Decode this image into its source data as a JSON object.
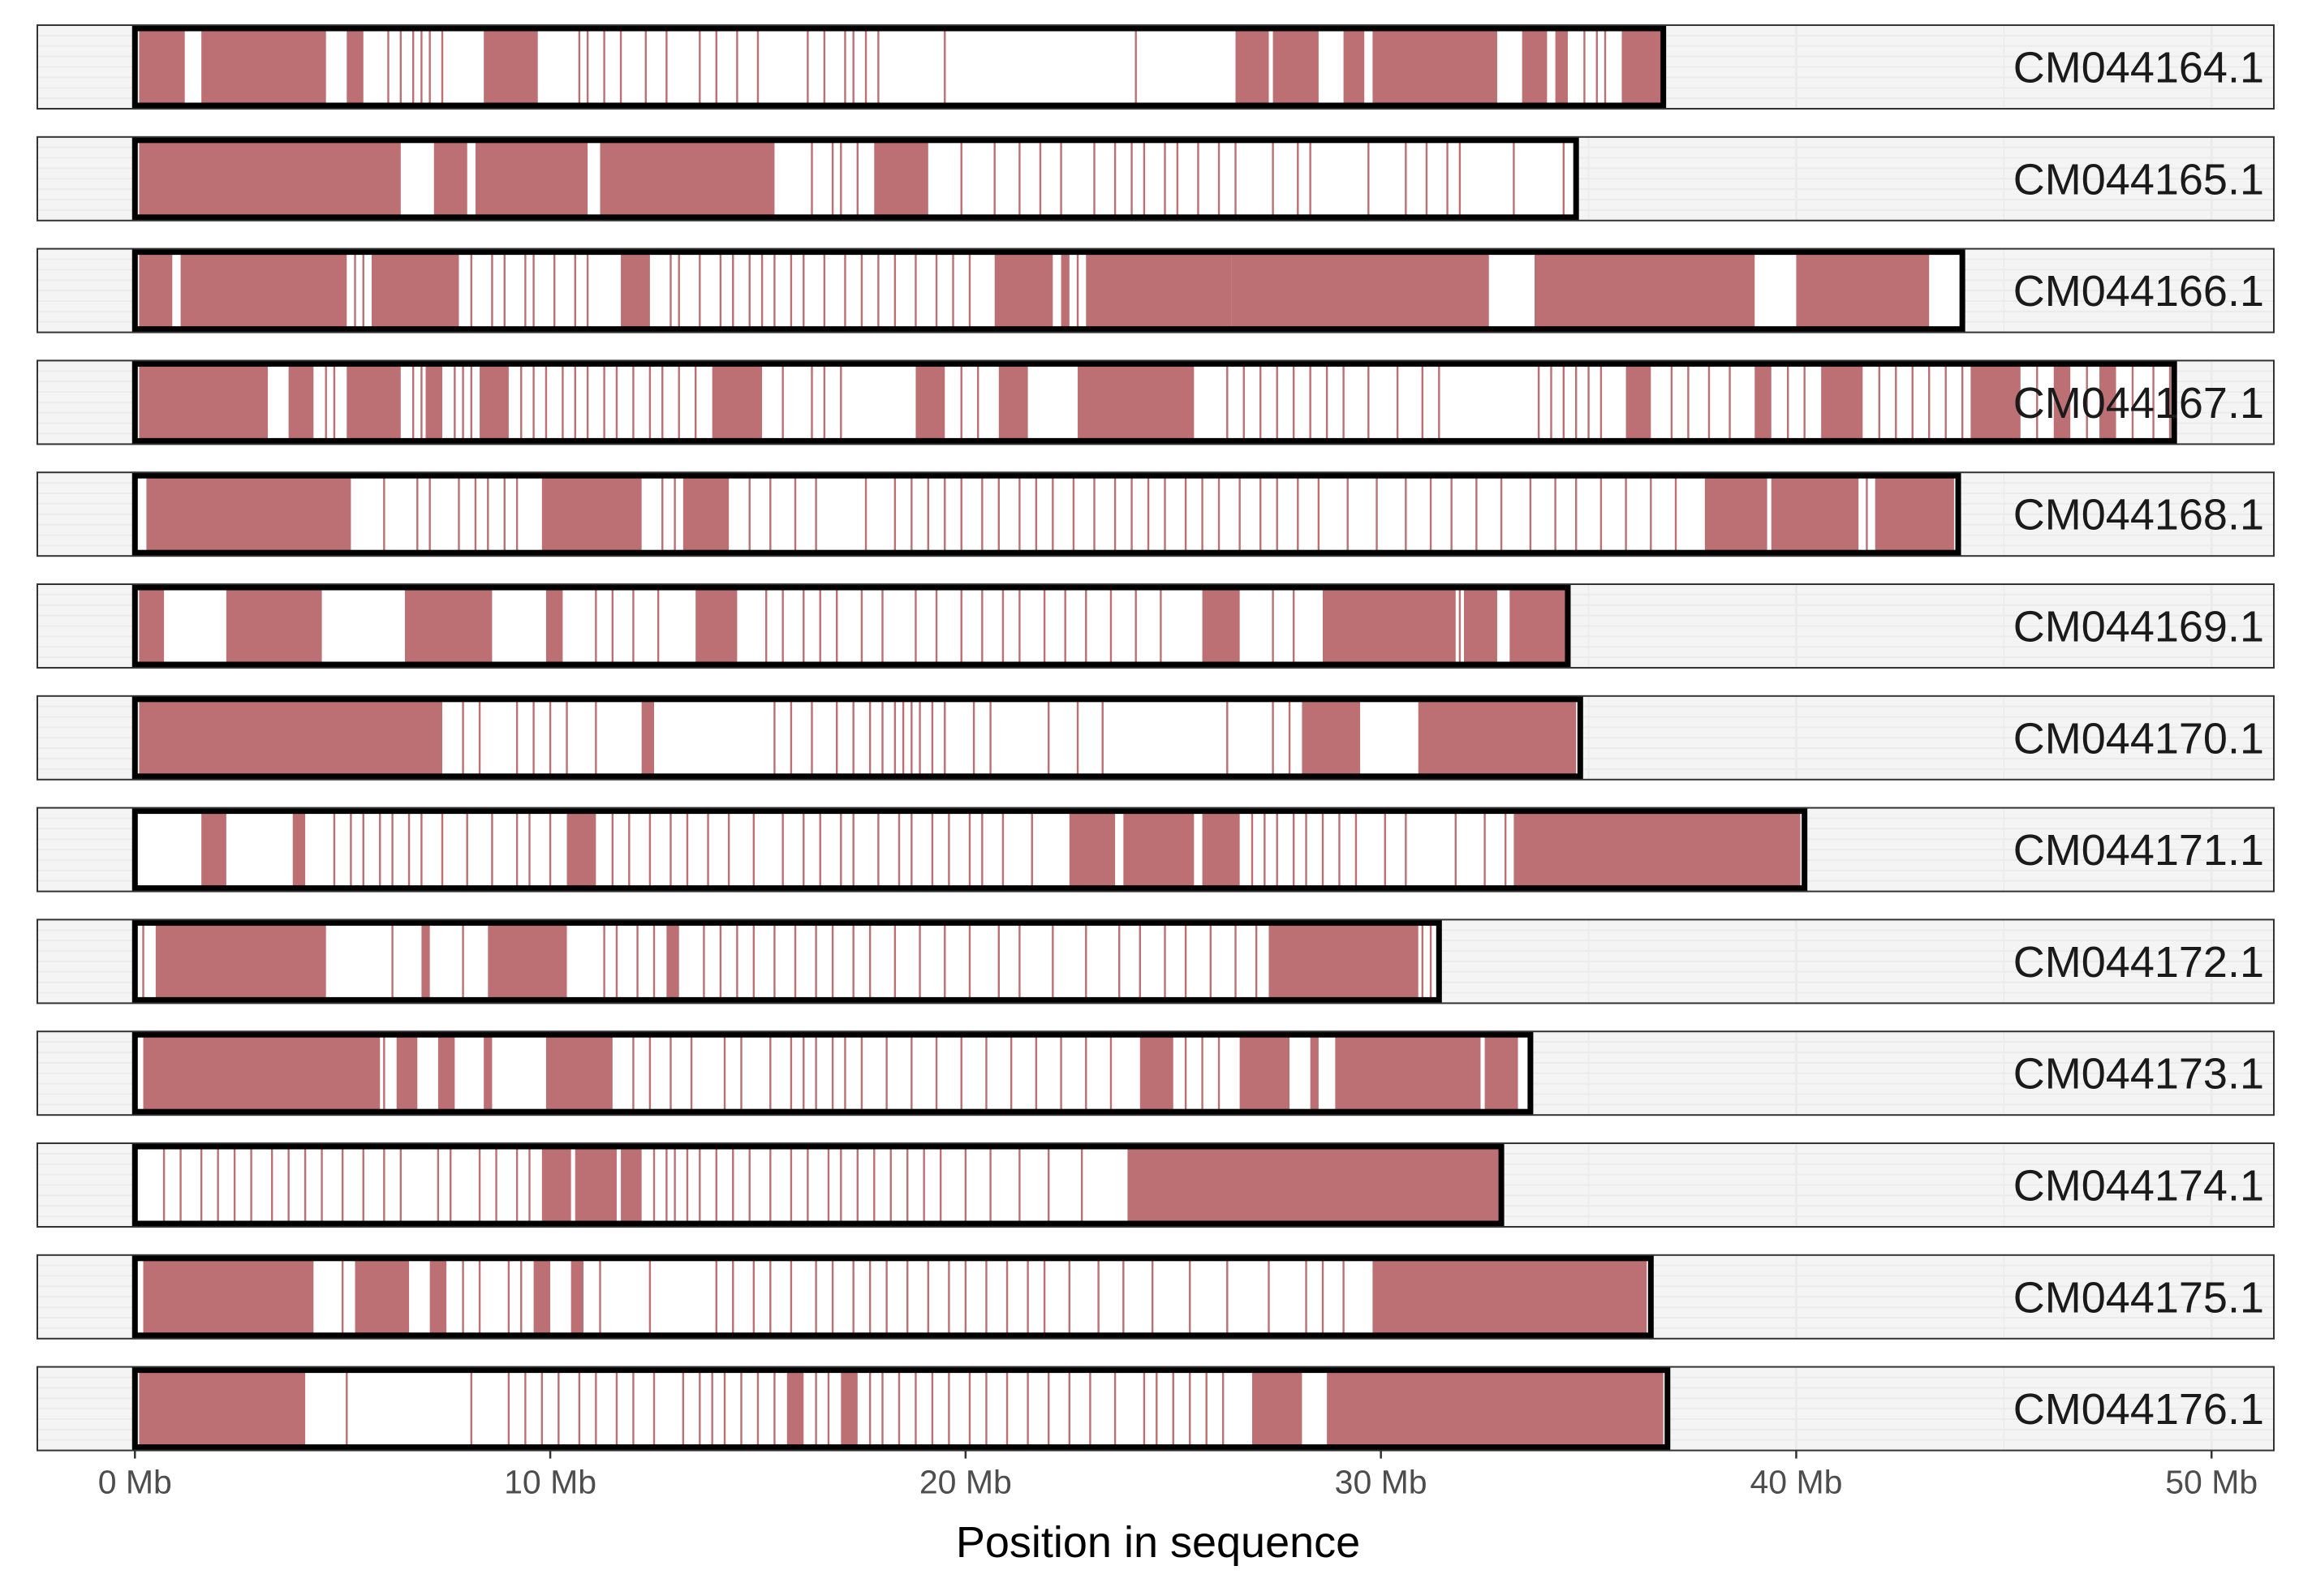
{
  "chart_data": {
    "type": "ideogram",
    "xlabel": "Position in sequence",
    "x_unit": "Mb",
    "xlim": [
      -2.35,
      51.5
    ],
    "x_ticks": [
      0,
      10,
      20,
      30,
      40,
      50
    ],
    "x_tick_labels": [
      "0 Mb",
      "10 Mb",
      "20 Mb",
      "30 Mb",
      "40 Mb",
      "50 Mb"
    ],
    "grid": true,
    "colors": {
      "feature": "#bc7074",
      "panel_bg": "#ebebeb",
      "panel_bg_light": "#f4f4f4",
      "grid_line": "#f7f7f7",
      "outline": "#000000",
      "sequence_fill": "#ffffff"
    },
    "sequences": [
      {
        "name": "CM044164.1",
        "length": 36.8,
        "regions": [
          [
            0.1,
            1.2
          ],
          [
            1.6,
            4.6
          ],
          [
            5.1,
            5.5
          ],
          [
            8.4,
            9.7
          ],
          [
            26.5,
            27.3
          ],
          [
            27.4,
            28.5
          ],
          [
            29.1,
            29.6
          ],
          [
            29.8,
            32.8
          ],
          [
            33.4,
            34.0
          ],
          [
            34.2,
            34.5
          ],
          [
            35.8,
            36.8
          ]
        ],
        "lines": [
          6.1,
          6.4,
          6.7,
          6.9,
          7.1,
          7.4,
          10.7,
          10.9,
          11.3,
          11.7,
          12.3,
          12.8,
          13.6,
          14.0,
          14.5,
          15.0,
          16.2,
          16.6,
          17.1,
          17.3,
          17.6,
          17.9,
          19.5,
          24.1,
          34.9,
          35.2,
          35.4
        ]
      },
      {
        "name": "CM044165.1",
        "length": 34.7,
        "regions": [
          [
            0.1,
            6.4
          ],
          [
            7.2,
            8.0
          ],
          [
            8.2,
            10.9
          ],
          [
            11.2,
            15.4
          ],
          [
            17.8,
            19.1
          ]
        ],
        "lines": [
          10.2,
          16.3,
          16.8,
          17.0,
          17.4,
          19.9,
          20.7,
          21.3,
          21.8,
          22.3,
          23.1,
          23.6,
          24.0,
          24.3,
          24.8,
          25.1,
          25.6,
          26.1,
          26.5,
          27.4,
          28.0,
          28.3,
          29.7,
          30.6,
          31.1,
          31.6,
          31.9,
          33.2,
          34.4
        ]
      },
      {
        "name": "CM044166.1",
        "length": 44.0,
        "regions": [
          [
            0.1,
            0.9
          ],
          [
            1.1,
            5.1
          ],
          [
            5.7,
            7.8
          ],
          [
            11.7,
            12.4
          ],
          [
            20.7,
            22.1
          ],
          [
            22.3,
            22.5
          ],
          [
            22.9,
            26.4
          ],
          [
            26.4,
            32.6
          ],
          [
            33.7,
            39.0
          ],
          [
            40.0,
            43.2
          ]
        ],
        "lines": [
          5.3,
          5.5,
          8.1,
          8.6,
          8.9,
          9.4,
          9.6,
          10.1,
          10.6,
          10.9,
          12.9,
          13.1,
          13.6,
          14.1,
          14.4,
          14.8,
          15.1,
          15.4,
          15.8,
          16.1,
          16.6,
          17.1,
          17.5,
          17.9,
          18.3,
          18.8,
          19.3,
          19.7,
          20.1,
          22.7
        ]
      },
      {
        "name": "CM044167.1",
        "length": 49.1,
        "regions": [
          [
            0.1,
            3.2
          ],
          [
            3.7,
            4.3
          ],
          [
            5.1,
            6.4
          ],
          [
            7.0,
            7.4
          ],
          [
            8.3,
            9.0
          ],
          [
            13.9,
            15.1
          ],
          [
            18.8,
            19.5
          ],
          [
            20.8,
            21.5
          ],
          [
            22.7,
            25.5
          ],
          [
            35.9,
            36.5
          ],
          [
            39.0,
            39.4
          ],
          [
            40.6,
            41.6
          ],
          [
            44.2,
            45.4
          ],
          [
            46.2,
            46.6
          ],
          [
            47.3,
            47.7
          ]
        ],
        "lines": [
          4.6,
          4.8,
          6.7,
          6.9,
          7.7,
          7.9,
          8.1,
          9.3,
          9.6,
          9.9,
          10.3,
          10.6,
          10.9,
          11.3,
          11.6,
          12.0,
          12.4,
          12.7,
          13.1,
          13.5,
          15.6,
          16.3,
          16.6,
          17.0,
          19.9,
          20.3,
          26.3,
          26.7,
          27.1,
          27.5,
          27.9,
          28.3,
          28.7,
          29.1,
          29.7,
          30.4,
          31.0,
          31.4,
          33.8,
          34.1,
          34.4,
          34.7,
          35.0,
          35.3,
          37.0,
          37.4,
          37.9,
          38.4,
          39.8,
          40.2,
          42.0,
          42.4,
          42.8,
          43.2,
          43.6,
          44.0,
          45.8,
          47.0,
          48.1,
          48.6,
          49.0
        ]
      },
      {
        "name": "CM044168.1",
        "length": 43.9,
        "regions": [
          [
            0.3,
            5.2
          ],
          [
            9.8,
            12.2
          ],
          [
            13.2,
            14.3
          ],
          [
            37.8,
            39.3
          ],
          [
            39.4,
            41.5
          ],
          [
            41.9,
            43.8
          ]
        ],
        "lines": [
          0.3,
          2.1,
          6.0,
          6.8,
          7.1,
          7.8,
          8.2,
          8.5,
          8.9,
          9.2,
          12.7,
          13.0,
          13.5,
          14.8,
          15.3,
          15.9,
          16.4,
          17.6,
          18.3,
          18.7,
          19.1,
          19.5,
          19.9,
          20.4,
          20.8,
          21.3,
          21.7,
          22.1,
          22.6,
          23.1,
          23.6,
          24.0,
          24.4,
          24.8,
          25.3,
          25.7,
          26.1,
          26.6,
          27.1,
          27.5,
          28.0,
          28.5,
          29.2,
          29.9,
          30.6,
          31.2,
          31.7,
          32.3,
          32.9,
          33.6,
          34.2,
          34.7,
          35.3,
          35.9,
          36.5,
          37.1,
          41.7
        ]
      },
      {
        "name": "CM044169.1",
        "length": 34.5,
        "regions": [
          [
            0.1,
            0.7
          ],
          [
            2.2,
            4.5
          ],
          [
            6.5,
            8.6
          ],
          [
            9.9,
            10.3
          ],
          [
            13.5,
            14.5
          ],
          [
            25.7,
            26.6
          ],
          [
            28.6,
            31.8
          ],
          [
            32.0,
            32.8
          ],
          [
            33.1,
            34.5
          ]
        ],
        "lines": [
          11.1,
          11.5,
          12.0,
          12.6,
          15.2,
          15.6,
          16.1,
          16.5,
          16.9,
          17.5,
          18.0,
          18.8,
          19.3,
          19.9,
          20.4,
          20.9,
          21.3,
          21.9,
          22.4,
          22.9,
          23.5,
          24.1,
          24.7,
          27.4,
          27.9,
          31.9
        ]
      },
      {
        "name": "CM044170.1",
        "length": 34.8,
        "regions": [
          [
            0.1,
            7.4
          ],
          [
            12.2,
            12.5
          ],
          [
            28.1,
            29.5
          ],
          [
            30.9,
            34.7
          ]
        ],
        "lines": [
          7.9,
          8.3,
          9.2,
          9.6,
          10.0,
          10.4,
          11.1,
          15.4,
          15.8,
          16.3,
          16.9,
          17.3,
          17.7,
          18.0,
          18.3,
          18.5,
          18.7,
          18.9,
          19.2,
          19.5,
          20.2,
          20.6,
          22.0,
          22.7,
          23.3,
          26.3,
          27.4,
          27.8
        ]
      },
      {
        "name": "CM044171.1",
        "length": 40.2,
        "regions": [
          [
            1.6,
            2.2
          ],
          [
            3.8,
            4.1
          ],
          [
            10.4,
            11.1
          ],
          [
            22.5,
            23.6
          ],
          [
            23.8,
            25.5
          ],
          [
            25.7,
            26.6
          ],
          [
            33.2,
            40.1
          ]
        ],
        "lines": [
          4.8,
          5.2,
          5.5,
          5.9,
          6.2,
          6.6,
          6.9,
          7.4,
          8.0,
          8.6,
          9.2,
          9.5,
          10.0,
          11.5,
          11.9,
          12.4,
          12.9,
          13.3,
          13.8,
          14.3,
          14.9,
          15.6,
          16.1,
          16.5,
          17.0,
          17.3,
          17.9,
          18.4,
          18.7,
          19.2,
          19.6,
          20.1,
          20.4,
          20.9,
          21.6,
          26.9,
          27.2,
          27.5,
          27.9,
          28.2,
          28.6,
          29.0,
          29.4,
          30.1,
          30.6,
          31.8,
          32.5,
          33.0
        ]
      },
      {
        "name": "CM044172.1",
        "length": 31.4,
        "regions": [
          [
            0.5,
            4.6
          ],
          [
            6.9,
            7.1
          ],
          [
            8.5,
            10.4
          ],
          [
            12.8,
            13.1
          ],
          [
            27.3,
            30.9
          ]
        ],
        "lines": [
          0.2,
          6.2,
          7.9,
          11.3,
          11.6,
          12.1,
          12.5,
          13.7,
          14.1,
          14.5,
          14.9,
          15.4,
          15.9,
          16.4,
          16.8,
          17.3,
          17.7,
          18.3,
          18.9,
          19.5,
          20.1,
          20.8,
          21.3,
          22.1,
          22.9,
          23.7,
          24.2,
          24.8,
          25.3,
          25.9,
          26.5,
          27.0,
          31.0,
          31.2
        ]
      },
      {
        "name": "CM044173.1",
        "length": 33.6,
        "regions": [
          [
            0.2,
            5.9
          ],
          [
            6.3,
            6.8
          ],
          [
            7.3,
            7.7
          ],
          [
            8.4,
            8.6
          ],
          [
            9.9,
            11.5
          ],
          [
            24.2,
            25.0
          ],
          [
            26.6,
            27.8
          ],
          [
            28.3,
            28.5
          ],
          [
            28.9,
            32.4
          ],
          [
            32.5,
            33.3
          ]
        ],
        "lines": [
          0.3,
          6.0,
          12.0,
          12.4,
          12.9,
          13.4,
          14.2,
          14.6,
          15.3,
          15.8,
          16.1,
          16.4,
          16.8,
          17.1,
          17.5,
          18.1,
          18.7,
          19.3,
          19.9,
          20.5,
          21.1,
          21.7,
          22.3,
          22.9,
          23.5,
          25.3,
          25.7,
          26.1
        ]
      },
      {
        "name": "CM044174.1",
        "length": 32.9,
        "regions": [
          [
            9.8,
            10.5
          ],
          [
            10.6,
            11.6
          ],
          [
            11.7,
            12.2
          ],
          [
            23.9,
            32.9
          ]
        ],
        "lines": [
          0.7,
          1.1,
          1.6,
          2.0,
          2.4,
          2.8,
          3.3,
          3.7,
          4.1,
          4.5,
          5.0,
          5.5,
          6.0,
          6.4,
          7.3,
          7.6,
          8.3,
          8.7,
          9.2,
          9.5,
          12.5,
          12.8,
          13.0,
          13.3,
          13.6,
          14.0,
          14.4,
          14.8,
          15.3,
          15.8,
          16.2,
          16.7,
          17.0,
          17.4,
          17.8,
          18.2,
          18.6,
          19.0,
          19.4,
          20.0,
          20.6,
          21.3,
          22.0,
          22.8
        ]
      },
      {
        "name": "CM044175.1",
        "length": 36.5,
        "regions": [
          [
            0.2,
            4.3
          ],
          [
            5.3,
            6.6
          ],
          [
            7.1,
            7.5
          ],
          [
            9.6,
            10.0
          ],
          [
            10.5,
            10.8
          ],
          [
            29.8,
            36.4
          ]
        ],
        "lines": [
          5.0,
          7.9,
          8.3,
          9.0,
          9.3,
          11.2,
          12.4,
          14.0,
          14.4,
          14.9,
          15.3,
          15.8,
          16.4,
          16.8,
          17.3,
          17.7,
          18.1,
          18.6,
          19.1,
          19.6,
          20.0,
          20.5,
          21.0,
          21.5,
          21.9,
          22.5,
          23.2,
          23.8,
          24.5,
          25.4,
          26.3,
          27.3,
          28.2,
          28.6,
          29.1
        ]
      },
      {
        "name": "CM044176.1",
        "length": 36.9,
        "regions": [
          [
            0.1,
            4.1
          ],
          [
            15.7,
            16.1
          ],
          [
            17.0,
            17.4
          ],
          [
            26.9,
            28.1
          ],
          [
            28.7,
            36.8
          ]
        ],
        "lines": [
          5.1,
          8.1,
          9.0,
          9.4,
          9.8,
          10.2,
          10.7,
          11.1,
          11.6,
          12.0,
          12.5,
          13.2,
          13.6,
          13.9,
          14.2,
          14.6,
          15.0,
          15.4,
          16.4,
          16.7,
          17.7,
          18.0,
          18.4,
          18.8,
          19.2,
          19.6,
          20.1,
          20.5,
          21.0,
          21.5,
          22.0,
          22.5,
          23.0,
          23.6,
          24.3,
          24.6,
          25.0,
          25.4,
          25.8,
          26.2
        ]
      }
    ]
  }
}
